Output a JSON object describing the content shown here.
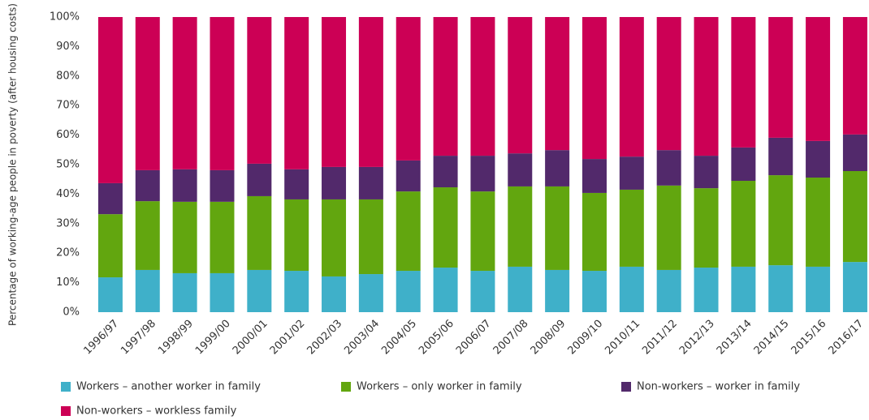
{
  "chart_data": {
    "type": "stacked_bar",
    "y_axis_label": "Percentage of working-age people in poverty (after housing costs)",
    "categories": [
      "1996/97",
      "1997/98",
      "1998/99",
      "1999/00",
      "2000/01",
      "2001/02",
      "2002/03",
      "2003/04",
      "2004/05",
      "2005/06",
      "2006/07",
      "2007/08",
      "2008/09",
      "2009/10",
      "2010/11",
      "2011/12",
      "2012/13",
      "2013/14",
      "2014/15",
      "2015/16",
      "2016/17"
    ],
    "series": [
      {
        "name": "Workers – another worker in family",
        "color": "#3fb0c9",
        "values": [
          11.8,
          14.3,
          13.2,
          13.2,
          14.3,
          14.0,
          12.1,
          12.9,
          14.0,
          15.1,
          14.0,
          15.4,
          14.3,
          14.0,
          15.4,
          14.3,
          15.1,
          15.4,
          15.9,
          15.4,
          17.0
        ]
      },
      {
        "name": "Workers – only worker in family",
        "color": "#62a60f",
        "values": [
          21.4,
          23.3,
          24.2,
          24.2,
          25.0,
          24.2,
          26.1,
          25.3,
          26.9,
          27.2,
          26.9,
          27.2,
          28.3,
          26.4,
          26.1,
          28.6,
          26.9,
          29.1,
          30.5,
          30.2,
          30.8
        ]
      },
      {
        "name": "Non-workers – worker in family",
        "color": "#52296b",
        "values": [
          10.5,
          10.5,
          11.0,
          10.7,
          11.0,
          10.2,
          11.0,
          11.0,
          10.5,
          10.7,
          12.1,
          11.2,
          12.3,
          11.5,
          11.2,
          12.0,
          11.0,
          11.3,
          12.7,
          12.4,
          12.4
        ]
      },
      {
        "name": "Non-workers – workless family",
        "color": "#cc0055",
        "values": [
          56.3,
          51.9,
          51.6,
          51.9,
          49.7,
          51.6,
          50.8,
          50.8,
          48.6,
          47.0,
          47.0,
          46.2,
          45.1,
          48.1,
          47.3,
          45.1,
          47.0,
          44.2,
          40.9,
          42.0,
          39.8
        ]
      }
    ],
    "ylim": [
      0,
      100
    ],
    "yticks": [
      {
        "value": 0,
        "label": "0%"
      },
      {
        "value": 10,
        "label": "10%"
      },
      {
        "value": 20,
        "label": "20%"
      },
      {
        "value": 30,
        "label": "30%"
      },
      {
        "value": 40,
        "label": "40%"
      },
      {
        "value": 50,
        "label": "50%"
      },
      {
        "value": 60,
        "label": "60%"
      },
      {
        "value": 70,
        "label": "70%"
      },
      {
        "value": 80,
        "label": "80%"
      },
      {
        "value": 90,
        "label": "90%"
      },
      {
        "value": 100,
        "label": "100%"
      }
    ],
    "grid": false
  }
}
